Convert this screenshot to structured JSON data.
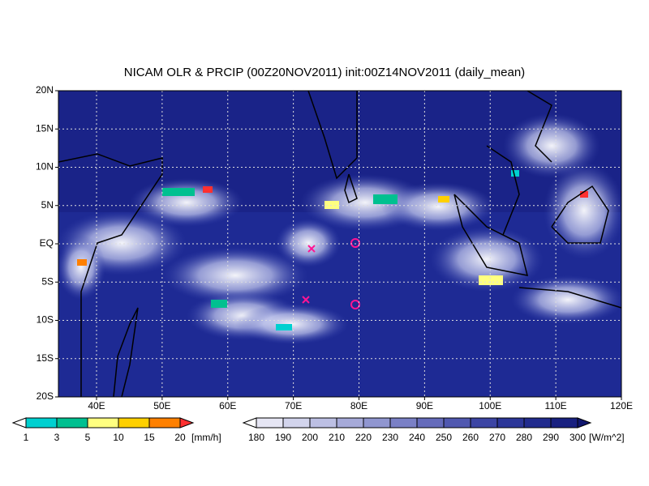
{
  "title": "NICAM OLR & PRCIP (00Z20NOV2011) init:00Z14NOV2011 (daily_mean)",
  "map": {
    "lon_labels": [
      "40E",
      "50E",
      "60E",
      "70E",
      "80E",
      "90E",
      "100E",
      "110E",
      "120E"
    ],
    "lat_labels": [
      "20N",
      "15N",
      "10N",
      "5N",
      "EQ",
      "5S",
      "10S",
      "15S",
      "20S"
    ]
  },
  "precip_legend": {
    "labels": [
      1,
      3,
      5,
      10,
      15,
      20
    ],
    "unit": "[mm/h]"
  },
  "olr_legend": {
    "labels": [
      180,
      190,
      200,
      210,
      220,
      230,
      240,
      250,
      260,
      270,
      280,
      290,
      300
    ],
    "unit": "[W/m^2]"
  }
}
